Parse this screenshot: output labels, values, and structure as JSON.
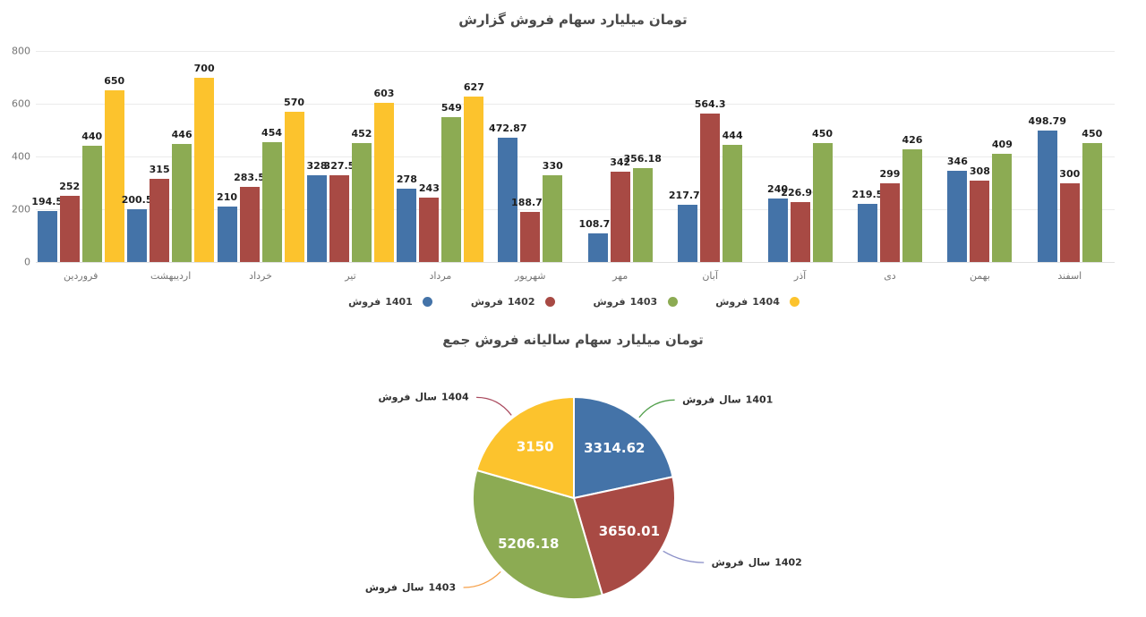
{
  "chart_data": [
    {
      "type": "bar",
      "title": "گزارش فروش سهام میلیارد تومان",
      "categories": [
        "فروردین",
        "اردیبهشت",
        "خرداد",
        "تیر",
        "مرداد",
        "شهریور",
        "مهر",
        "آبان",
        "آذر",
        "دی",
        "بهمن",
        "اسفند"
      ],
      "series": [
        {
          "name": "فروش 1401",
          "color": "#4473a8",
          "values": [
            194.5,
            200.5,
            210,
            328,
            278,
            472.87,
            108.72,
            217.74,
            240,
            219.5,
            346,
            498.79
          ]
        },
        {
          "name": "فروش 1402",
          "color": "#a84a44",
          "values": [
            252,
            315,
            283.5,
            327.5,
            243,
            188.75,
            342,
            564.3,
            226.96,
            299,
            308,
            300
          ]
        },
        {
          "name": "فروش 1403",
          "color": "#8cab53",
          "values": [
            440,
            446,
            454,
            452,
            549,
            330,
            356.18,
            444,
            450,
            426,
            409,
            450
          ]
        },
        {
          "name": "فروش 1404",
          "color": "#fcc32d",
          "values": [
            650,
            700,
            570,
            603,
            627,
            null,
            null,
            null,
            null,
            null,
            null,
            null
          ]
        }
      ],
      "y_ticks": [
        0,
        200,
        400,
        600,
        800
      ],
      "ylim": [
        0,
        800
      ],
      "grid": "horizontal",
      "legend_position": "bottom"
    },
    {
      "type": "pie",
      "title": "جمع فروش سالیانه سهام میلیارد تومان",
      "direction": "clockwise",
      "start_angle_deg": 0,
      "slices": [
        {
          "label": "فروش سال 1401",
          "value": 3314.62,
          "color": "#4473a8",
          "leader_color": "#55a14f"
        },
        {
          "label": "فروش سال 1402",
          "value": 3650.01,
          "color": "#a84a44",
          "leader_color": "#8b90c8"
        },
        {
          "label": "فروش سال 1403",
          "value": 5206.18,
          "color": "#8cab53",
          "leader_color": "#f6a14b"
        },
        {
          "label": "فروش سال 1404",
          "value": 3150,
          "color": "#fcc32d",
          "leader_color": "#aa4a5e"
        }
      ]
    }
  ]
}
